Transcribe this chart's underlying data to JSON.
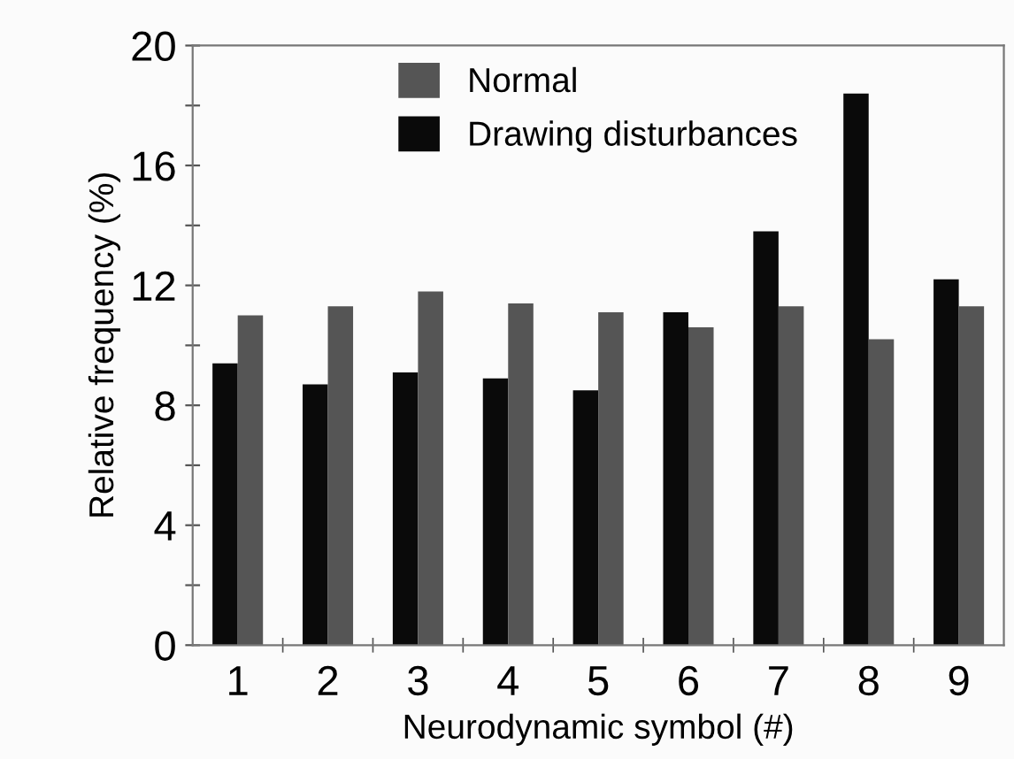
{
  "chart_data": {
    "type": "bar",
    "xlabel": "Neurodynamic symbol (#)",
    "ylabel": "Relative frequency (%)",
    "categories": [
      "1",
      "2",
      "3",
      "4",
      "5",
      "6",
      "7",
      "8",
      "9"
    ],
    "series": [
      {
        "name": "Drawing disturbances",
        "color": "#0a0a0a",
        "values": [
          9.4,
          8.7,
          9.1,
          8.9,
          8.5,
          11.1,
          13.8,
          18.4,
          12.2
        ]
      },
      {
        "name": "Normal",
        "color": "#555555",
        "values": [
          11.0,
          11.3,
          11.8,
          11.4,
          11.1,
          10.6,
          11.3,
          10.2,
          11.3
        ]
      }
    ],
    "ylim": [
      0,
      20
    ],
    "yticks": [
      0,
      {
        "value": 2,
        "label": null
      },
      4,
      {
        "value": 6,
        "label": null
      },
      8,
      {
        "value": 10,
        "label": null
      },
      12,
      {
        "value": 14,
        "label": null
      },
      16,
      {
        "value": 18,
        "label": null
      },
      20
    ],
    "grid": false,
    "legend": "top"
  }
}
